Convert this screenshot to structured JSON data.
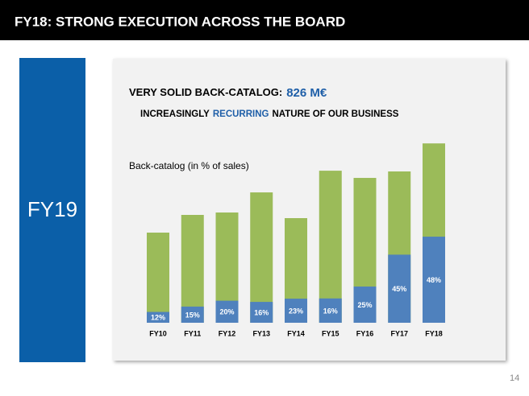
{
  "header": {
    "title": "FY18: STRONG EXECUTION ACROSS THE BOARD"
  },
  "side_panel": {
    "label": "FY19"
  },
  "page_number": "14",
  "chart_data": {
    "type": "bar",
    "title_parts": [
      "VERY SOLID BACK-CATALOG:",
      "826 M€"
    ],
    "subtitle_parts": [
      "INCREASINGLY",
      "RECURRING",
      "NATURE OF OUR BUSINESS"
    ],
    "y_label": "Back-catalog (in % of sales)",
    "categories": [
      "FY10",
      "FY11",
      "FY12",
      "FY13",
      "FY14",
      "FY15",
      "FY16",
      "FY17",
      "FY18"
    ],
    "totals": [
      865,
      1035,
      1058,
      1251,
      1004,
      1459,
      1390,
      1452,
      1721
    ],
    "total_color": "#9bbb59",
    "values": [
      12,
      15,
      20,
      16,
      23,
      16,
      25,
      45,
      48
    ],
    "value_labels": [
      "12%",
      "15%",
      "20%",
      "16%",
      "23%",
      "16%",
      "25%",
      "45%",
      "48%"
    ],
    "color": "#4f81bd",
    "ylim": [
      0,
      1900
    ]
  }
}
